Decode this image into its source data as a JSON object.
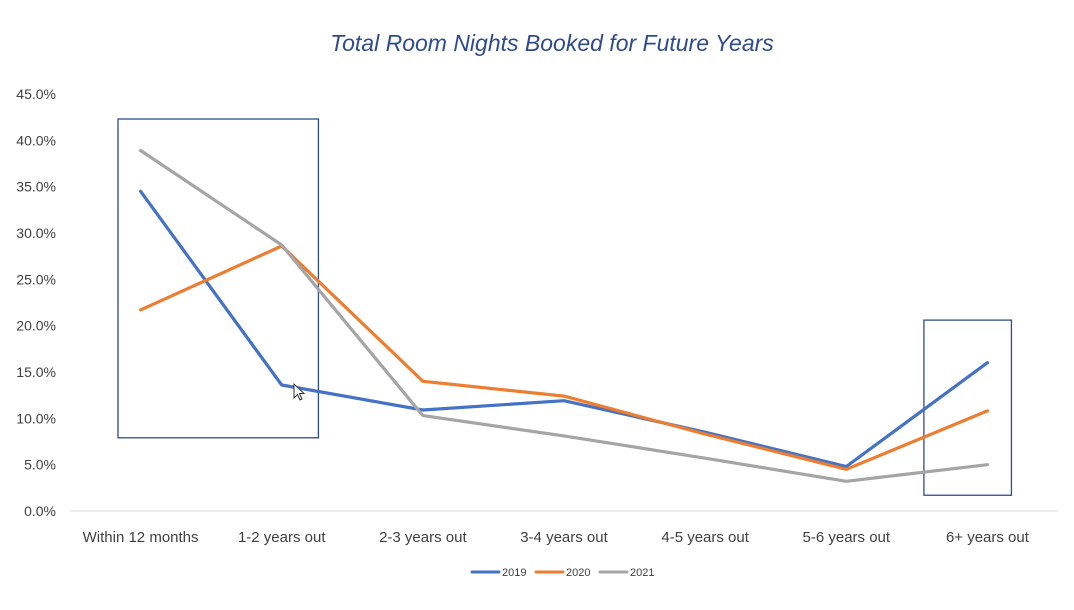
{
  "chart_data": {
    "type": "line",
    "title": "Total Room Nights Booked for Future Years",
    "xlabel": "",
    "ylabel": "",
    "categories": [
      "Within 12 months",
      "1-2 years out",
      "2-3 years out",
      "3-4 years out",
      "4-5 years out",
      "5-6 years out",
      "6+ years out"
    ],
    "yticks": [
      "0.0%",
      "5.0%",
      "10.0%",
      "15.0%",
      "20.0%",
      "25.0%",
      "30.0%",
      "35.0%",
      "40.0%",
      "45.0%"
    ],
    "ylim": [
      0,
      45
    ],
    "grid": "baseline only",
    "legend_position": "bottom",
    "series": [
      {
        "name": "2019",
        "color": "#4472c4",
        "values": [
          34.5,
          13.6,
          10.9,
          11.9,
          8.5,
          4.8,
          16.0
        ]
      },
      {
        "name": "2020",
        "color": "#ed7d31",
        "values": [
          21.7,
          28.6,
          14.0,
          12.4,
          8.3,
          4.5,
          10.8
        ]
      },
      {
        "name": "2021",
        "color": "#a5a5a5",
        "values": [
          38.9,
          28.7,
          10.3,
          8.1,
          5.7,
          3.2,
          5.0
        ]
      }
    ],
    "annotations": [
      {
        "type": "rectangle",
        "color": "#2f4b8f",
        "x_from": "Within 12 months",
        "x_to": "1-2 years out",
        "y_range": [
          7.9,
          42.3
        ]
      },
      {
        "type": "rectangle",
        "color": "#2f4b8f",
        "x_from": "6+ years out",
        "x_to": "6+ years out",
        "y_range": [
          1.7,
          20.6
        ]
      }
    ]
  }
}
